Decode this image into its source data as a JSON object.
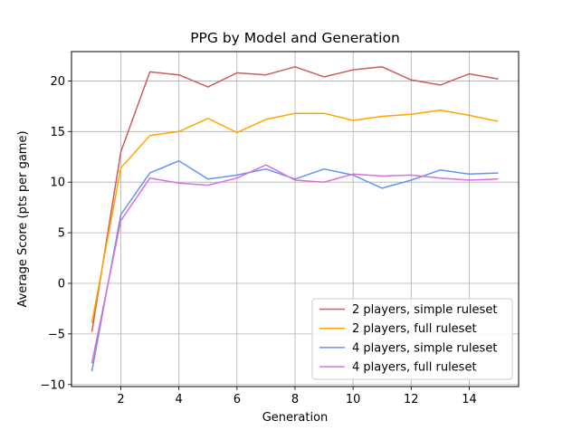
{
  "chart_data": {
    "type": "line",
    "title": "PPG by Model and Generation",
    "xlabel": "Generation",
    "ylabel": "Average Score (pts per game)",
    "xlim": [
      0.3,
      15.7
    ],
    "ylim": [
      -10.2,
      22.9
    ],
    "xticks": [
      2,
      4,
      6,
      8,
      10,
      12,
      14
    ],
    "yticks": [
      -10,
      -5,
      0,
      5,
      10,
      15,
      20
    ],
    "xtick_labels": [
      "2",
      "4",
      "6",
      "8",
      "10",
      "12",
      "14"
    ],
    "ytick_labels": [
      "−10",
      "−5",
      "0",
      "5",
      "10",
      "15",
      "20"
    ],
    "grid": true,
    "legend_position": "lower-right",
    "x": [
      1,
      2,
      3,
      4,
      5,
      6,
      7,
      8,
      9,
      10,
      11,
      12,
      13,
      14,
      15
    ],
    "series": [
      {
        "name": "2 players, simple ruleset",
        "color": "#cd5c5c",
        "values": [
          -4.8,
          13.0,
          20.9,
          20.6,
          19.4,
          20.8,
          20.6,
          21.4,
          20.4,
          21.1,
          21.4,
          20.1,
          19.6,
          20.7,
          20.2
        ]
      },
      {
        "name": "2 players, full ruleset",
        "color": "#ffa500",
        "values": [
          -3.9,
          11.4,
          14.6,
          15.0,
          16.3,
          14.9,
          16.2,
          16.8,
          16.8,
          16.1,
          16.5,
          16.7,
          17.1,
          16.6,
          16.0
        ]
      },
      {
        "name": "4 players, simple ruleset",
        "color": "#6495ed",
        "values": [
          -8.7,
          6.8,
          10.9,
          12.1,
          10.3,
          10.7,
          11.3,
          10.3,
          11.3,
          10.7,
          9.4,
          10.2,
          11.2,
          10.8,
          10.9
        ]
      },
      {
        "name": "4 players, full ruleset",
        "color": "#da70d6",
        "values": [
          -7.9,
          6.2,
          10.4,
          9.9,
          9.7,
          10.4,
          11.7,
          10.2,
          10.0,
          10.8,
          10.6,
          10.7,
          10.4,
          10.2,
          10.3
        ]
      }
    ]
  }
}
